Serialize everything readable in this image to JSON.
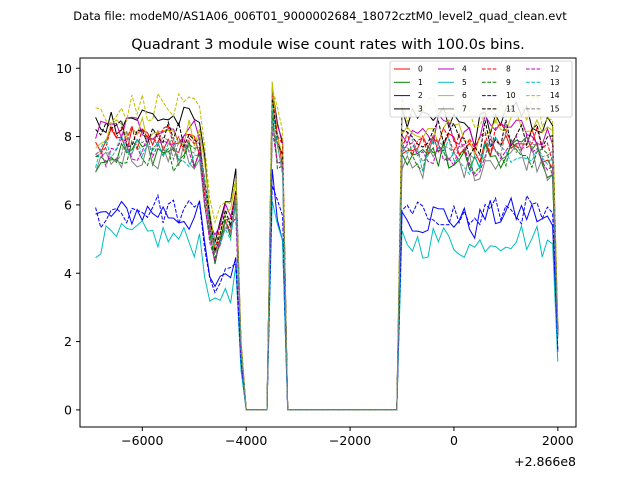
{
  "chart_data": {
    "type": "line",
    "suptitle": "Data file: modeM0/AS1A06_006T01_9000002684_18072cztM0_level2_quad_clean.evt",
    "title": "Quadrant 3 module wise count rates with 100.0s bins.",
    "xlabel": "",
    "ylabel": "",
    "x_offset_label": "+2.866e8",
    "xlim": [
      -7200,
      2350
    ],
    "ylim": [
      -0.5,
      10.3
    ],
    "xticks": [
      -6000,
      -4000,
      -2000,
      0,
      2000
    ],
    "xtick_labels": [
      "−6000",
      "−4000",
      "−2000",
      "0",
      "2000"
    ],
    "yticks": [
      0,
      2,
      4,
      6,
      8,
      10
    ],
    "ytick_labels": [
      "0",
      "2",
      "4",
      "6",
      "8",
      "10"
    ],
    "grid": false,
    "legend_position": "top-right",
    "series": [
      {
        "name": "0",
        "color": "#ff0000",
        "dash": "solid"
      },
      {
        "name": "1",
        "color": "#008000",
        "dash": "solid"
      },
      {
        "name": "2",
        "color": "#0000ff",
        "dash": "solid"
      },
      {
        "name": "3",
        "color": "#000000",
        "dash": "solid"
      },
      {
        "name": "4",
        "color": "#bf00bf",
        "dash": "solid"
      },
      {
        "name": "5",
        "color": "#00bfbf",
        "dash": "solid"
      },
      {
        "name": "6",
        "color": "#bfbf00",
        "dash": "solid"
      },
      {
        "name": "7",
        "color": "#808080",
        "dash": "solid"
      },
      {
        "name": "8",
        "color": "#ff0000",
        "dash": "dashed"
      },
      {
        "name": "9",
        "color": "#008000",
        "dash": "dashed"
      },
      {
        "name": "10",
        "color": "#0000ff",
        "dash": "dashed"
      },
      {
        "name": "11",
        "color": "#000000",
        "dash": "dashed"
      },
      {
        "name": "12",
        "color": "#bf00bf",
        "dash": "dashed"
      },
      {
        "name": "13",
        "color": "#00bfbf",
        "dash": "dashed"
      },
      {
        "name": "14",
        "color": "#bfbf00",
        "dash": "dashed"
      },
      {
        "name": "15",
        "color": "#808080",
        "dash": "dashed"
      }
    ],
    "level_profile": {
      "x": [
        -6900,
        -6500,
        -6100,
        -5700,
        -5300,
        -5000,
        -4900,
        -4800,
        -4700,
        -4600,
        -4500,
        -4400,
        -4300,
        -4200,
        -4100,
        -4000,
        -3900,
        -3600,
        -3500,
        -3400,
        -3300,
        -3200,
        -3100,
        -2000,
        -1100,
        -1000,
        -800,
        -600,
        -400,
        -200,
        0,
        200,
        400,
        600,
        800,
        1200,
        1600,
        1900,
        2000
      ],
      "level": [
        7.5,
        7.6,
        7.7,
        7.7,
        7.6,
        7.5,
        7.6,
        6.4,
        5.2,
        4.6,
        5.0,
        5.5,
        5.2,
        6.0,
        1.8,
        0,
        0,
        0,
        8.6,
        7.6,
        7.2,
        0,
        0,
        0,
        0,
        7.6,
        7.5,
        7.4,
        7.6,
        7.6,
        7.5,
        7.4,
        7.2,
        7.6,
        7.6,
        7.7,
        7.6,
        7.2,
        2.2
      ]
    },
    "series_offsets": {
      "0": 0.2,
      "1": -0.1,
      "2": -1.9,
      "3": 0.9,
      "4": 0.6,
      "5": -2.6,
      "6": 0.6,
      "7": -0.2,
      "8": 0.3,
      "9": -0.2,
      "10": -1.8,
      "11": 0.5,
      "12": 0.0,
      "13": 0.0,
      "14": 1.2,
      "15": 0.1
    },
    "summary_values": {
      "high_segment_1_x_range": [
        -6900,
        -4950
      ],
      "high_segment_1_typical_range": [
        5.0,
        9.5
      ],
      "spike_x": -3500,
      "spike_peak": 9.4,
      "zero_gap_x_range": [
        -3200,
        -1150
      ],
      "high_segment_2_x_range": [
        -1050,
        2000
      ],
      "high_segment_2_typical_range": [
        4.5,
        9.0
      ]
    }
  }
}
